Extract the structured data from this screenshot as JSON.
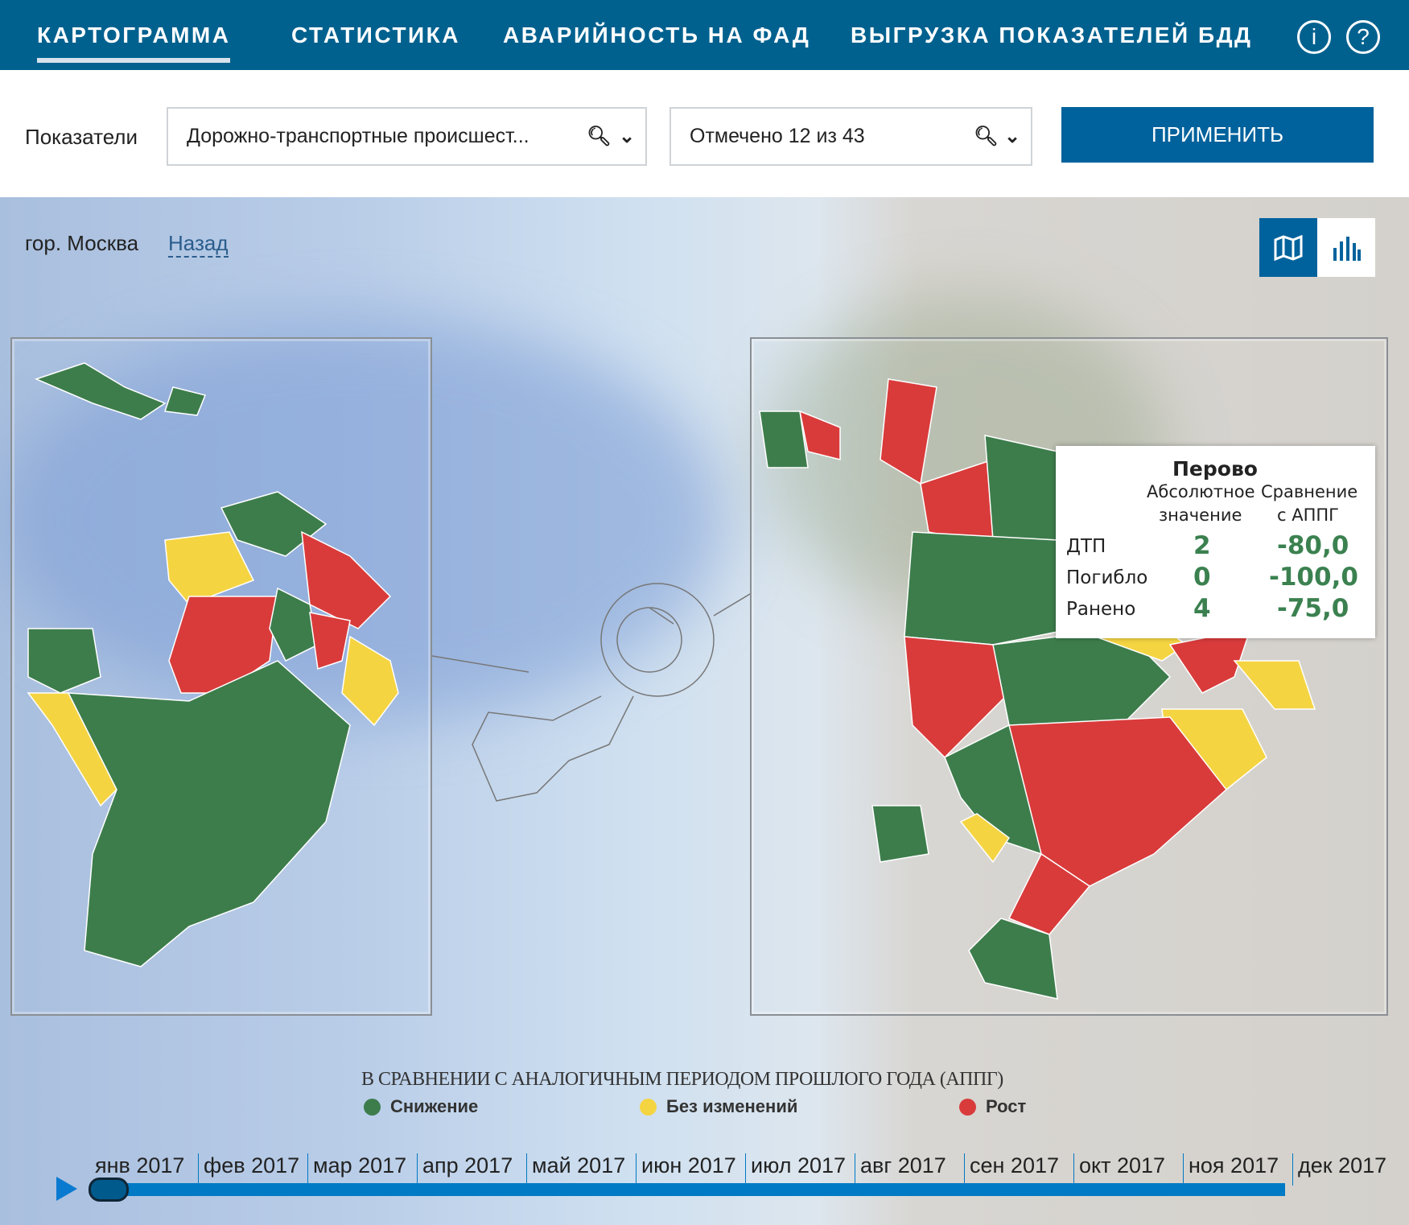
{
  "nav": {
    "tabs": [
      {
        "label": "КАРТОГРАММА",
        "active": true
      },
      {
        "label": "СТАТИСТИКА"
      },
      {
        "label": "АВАРИЙНОСТЬ НА ФАД"
      },
      {
        "label": "ВЫГРУЗКА ПОКАЗАТЕЛЕЙ БДД"
      }
    ],
    "icons": [
      "info-icon",
      "help-icon"
    ],
    "info_glyph": "i",
    "help_glyph": "?"
  },
  "filters": {
    "label": "Показатели",
    "indicator_value": "Дорожно-транспортные происшест...",
    "districts_value": "Отмечено 12 из 43",
    "apply_label": "ПРИМЕНИТЬ"
  },
  "location": {
    "city": "гор. Москва",
    "back_label": "Назад"
  },
  "view_toggle": {
    "active": "map"
  },
  "tooltip": {
    "title": "Перово",
    "col1": [
      "Абсолютное",
      "значение"
    ],
    "col2": [
      "Сравнение",
      "с АППГ"
    ],
    "rows": [
      {
        "label": "ДТП",
        "value": "2",
        "change": "-80,0"
      },
      {
        "label": "Погибло",
        "value": "0",
        "change": "-100,0"
      },
      {
        "label": "Ранено",
        "value": "4",
        "change": "-75,0"
      }
    ]
  },
  "legend": {
    "title": "В СРАВНЕНИИ С АНАЛОГИЧНЫМ ПЕРИОДОМ ПРОШЛОГО ГОДА (АППГ)",
    "items": [
      {
        "label": "Снижение",
        "color": "#3d7d4c"
      },
      {
        "label": "Без изменений",
        "color": "#f5d442"
      },
      {
        "label": "Рост",
        "color": "#d93b3b"
      }
    ]
  },
  "timeline": {
    "months": [
      "янв 2017",
      "фев 2017",
      "мар 2017",
      "апр 2017",
      "май 2017",
      "июн 2017",
      "июл 2017",
      "авг 2017",
      "сен 2017",
      "окт 2017",
      "ноя 2017",
      "дек 2017"
    ],
    "selected": "янв 2017"
  },
  "colors": {
    "header": "#00618f",
    "accent": "#00629c",
    "green": "#3d7d4c",
    "yellow": "#f5d442",
    "red": "#d93b3b"
  }
}
